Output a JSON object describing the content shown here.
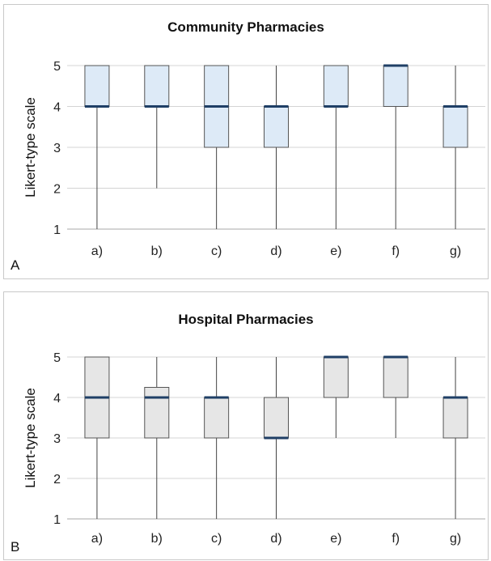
{
  "chart_data": [
    {
      "type": "box",
      "title": "Community Pharmacies",
      "panel_label": "A",
      "ylabel": "Likert-type scale",
      "xlabel": "",
      "ylim": [
        1,
        5
      ],
      "yticks": [
        "1",
        "2",
        "3",
        "4",
        "5"
      ],
      "grid": true,
      "box_color": "#ddeaf7",
      "categories": [
        "a)",
        "b)",
        "c)",
        "d)",
        "e)",
        "f)",
        "g)"
      ],
      "boxes": [
        {
          "min": 1,
          "q1": 4,
          "median": 4,
          "q3": 5,
          "max": 5
        },
        {
          "min": 2,
          "q1": 4,
          "median": 4,
          "q3": 5,
          "max": 5
        },
        {
          "min": 1,
          "q1": 3,
          "median": 4,
          "q3": 5,
          "max": 5
        },
        {
          "min": 1,
          "q1": 3,
          "median": 4,
          "q3": 4,
          "max": 5
        },
        {
          "min": 1,
          "q1": 4,
          "median": 4,
          "q3": 5,
          "max": 5
        },
        {
          "min": 1,
          "q1": 4,
          "median": 5,
          "q3": 5,
          "max": 5
        },
        {
          "min": 1,
          "q1": 3,
          "median": 4,
          "q3": 4,
          "max": 5
        }
      ]
    },
    {
      "type": "box",
      "title": "Hospital Pharmacies",
      "panel_label": "B",
      "ylabel": "Likert-type scale",
      "xlabel": "",
      "ylim": [
        1,
        5
      ],
      "yticks": [
        "1",
        "2",
        "3",
        "4",
        "5"
      ],
      "grid": true,
      "box_color": "#e6e6e6",
      "categories": [
        "a)",
        "b)",
        "c)",
        "d)",
        "e)",
        "f)",
        "g)"
      ],
      "boxes": [
        {
          "min": 1,
          "q1": 3,
          "median": 4,
          "q3": 5,
          "max": 5
        },
        {
          "min": 1,
          "q1": 3,
          "median": 4,
          "q3": 4.25,
          "max": 5
        },
        {
          "min": 1,
          "q1": 3,
          "median": 4,
          "q3": 4,
          "max": 5
        },
        {
          "min": 1,
          "q1": 3,
          "median": 3,
          "q3": 4,
          "max": 5
        },
        {
          "min": 3,
          "q1": 4,
          "median": 5,
          "q3": 5,
          "max": 5
        },
        {
          "min": 3,
          "q1": 4,
          "median": 5,
          "q3": 5,
          "max": 5
        },
        {
          "min": 1,
          "q1": 3,
          "median": 4,
          "q3": 4,
          "max": 5
        }
      ]
    }
  ]
}
